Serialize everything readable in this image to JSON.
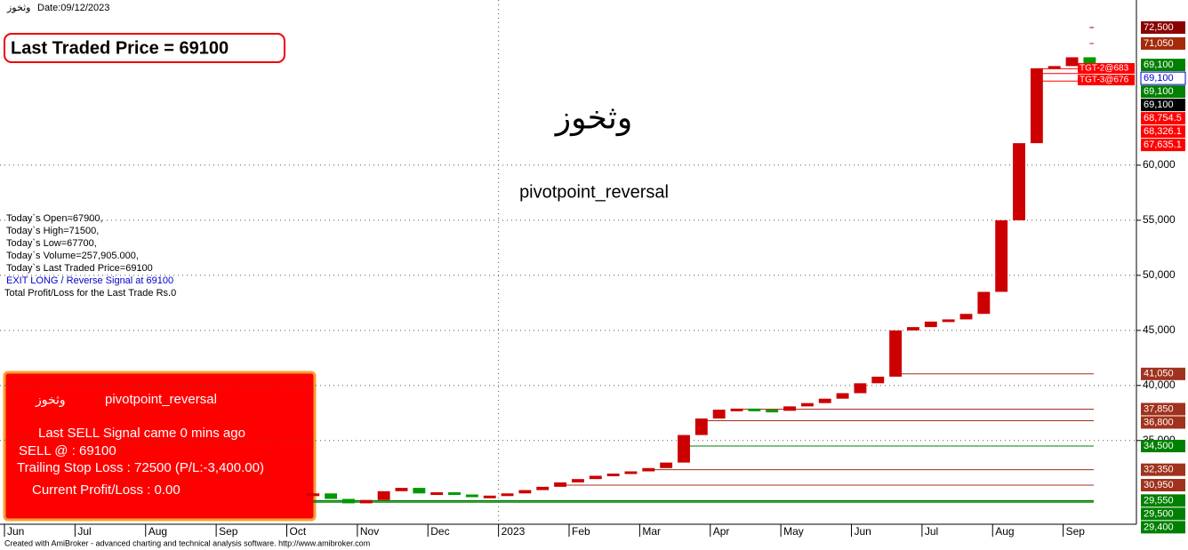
{
  "chart_data": {
    "type": "candlestick",
    "title": "وثخوز",
    "date_label": "Date:09/12/2023",
    "categories": [
      "Jun",
      null,
      null,
      null,
      "Jul",
      null,
      null,
      null,
      "Aug",
      null,
      null,
      null,
      "Sep",
      null,
      null,
      null,
      "Oct",
      null,
      null,
      null,
      "Nov",
      null,
      null,
      null,
      "Dec",
      null,
      null,
      null,
      "2023",
      null,
      null,
      null,
      "Feb",
      null,
      null,
      null,
      "Mar",
      null,
      null,
      null,
      "Apr",
      null,
      null,
      null,
      "May",
      null,
      null,
      null,
      "Jun",
      null,
      null,
      null,
      "Jul",
      null,
      null,
      null,
      "Aug",
      null,
      null,
      null,
      "Sep",
      null,
      null,
      null
    ],
    "series": [
      {
        "name": "وثخوز",
        "color": "#cc0000",
        "up_color": "#009900",
        "values": [
          null,
          null,
          null,
          null,
          null,
          null,
          null,
          null,
          null,
          null,
          null,
          null,
          null,
          null,
          null,
          null,
          null,
          30200,
          29700,
          29300,
          29600,
          30400,
          30700,
          30200,
          30300,
          30100,
          30000,
          30000,
          30200,
          30500,
          30800,
          31200,
          31500,
          31800,
          32000,
          32200,
          32500,
          33000,
          35500,
          37000,
          37800,
          37900,
          37800,
          37700,
          38100,
          38400,
          38800,
          39300,
          40200,
          40800,
          45000,
          45300,
          45800,
          46000,
          46500,
          48500,
          55000,
          62000,
          68800,
          69000,
          69800,
          69100,
          null,
          null
        ]
      }
    ],
    "ylim": [
      27400,
      75000
    ],
    "yticks": [
      {
        "value": 35000,
        "label": "35,000"
      },
      {
        "value": 40000,
        "label": "40,000"
      },
      {
        "value": 45000,
        "label": "45,000"
      },
      {
        "value": 50000,
        "label": "50,000"
      },
      {
        "value": 55000,
        "label": "55,000"
      },
      {
        "value": 60000,
        "label": "60,000"
      }
    ],
    "grid": true,
    "levels": [
      {
        "value": 72500,
        "label": "72,500",
        "color": "#8b0000"
      },
      {
        "value": 71050,
        "label": "71,050",
        "color": "#a52a0a"
      },
      {
        "value": 69100,
        "label": "69,100",
        "color": "#008000"
      },
      {
        "value": 69100,
        "label": "69,100",
        "color": "#0000cc"
      },
      {
        "value": 69100,
        "label": "69,100",
        "color": "#008000"
      },
      {
        "value": 69100,
        "label": "69,100",
        "color": "#000000"
      },
      {
        "value": 68754.5,
        "label": "68,754.5",
        "color": "#ff0000"
      },
      {
        "value": 68326.1,
        "label": "68,326.1",
        "color": "#ff0000"
      },
      {
        "value": 67635.1,
        "label": "67,635.1",
        "color": "#ff0000"
      },
      {
        "value": 41050,
        "label": "41,050",
        "color": "#a0321e"
      },
      {
        "value": 37850,
        "label": "37,850",
        "color": "#a0321e"
      },
      {
        "value": 36800,
        "label": "36,800",
        "color": "#a0321e"
      },
      {
        "value": 34500,
        "label": "34,500",
        "color": "#008000"
      },
      {
        "value": 32350,
        "label": "32,350",
        "color": "#a0321e"
      },
      {
        "value": 30950,
        "label": "30,950",
        "color": "#a0321e"
      },
      {
        "value": 29550,
        "label": "29,550",
        "color": "#008000"
      },
      {
        "value": 29500,
        "label": "29,500",
        "color": "#008000"
      },
      {
        "value": 29400,
        "label": "29,400",
        "color": "#008000"
      }
    ],
    "targets": [
      "TGT-2@683",
      "TGT-3@676"
    ]
  },
  "overlay": {
    "ltp": "Last Traded Price = 69100",
    "name": "وثخوز",
    "system": "pivotpoint_reversal",
    "info": [
      "Today`s Open=67900,",
      "Today`s High=71500,",
      "Today`s Low=67700,",
      "Today`s Volume=257,905.000,",
      "Today`s Last Traded Price=69100"
    ],
    "signal": "EXIT LONG / Reverse Signal at 69100",
    "pnl": "Total Profit/Loss for the Last Trade Rs.0",
    "box": {
      "name": "وثخوز",
      "system": "pivotpoint_reversal",
      "lines": [
        "Last SELL Signal came 0 mins ago",
        "SELL @ : 69100",
        "Trailing Stop Loss : 72500 (P/L:-3,400.00)",
        "Current Profit/Loss : 0.00"
      ]
    },
    "footer": "Created with AmiBroker - advanced charting and technical analysis software. http://www.amibroker.com"
  }
}
